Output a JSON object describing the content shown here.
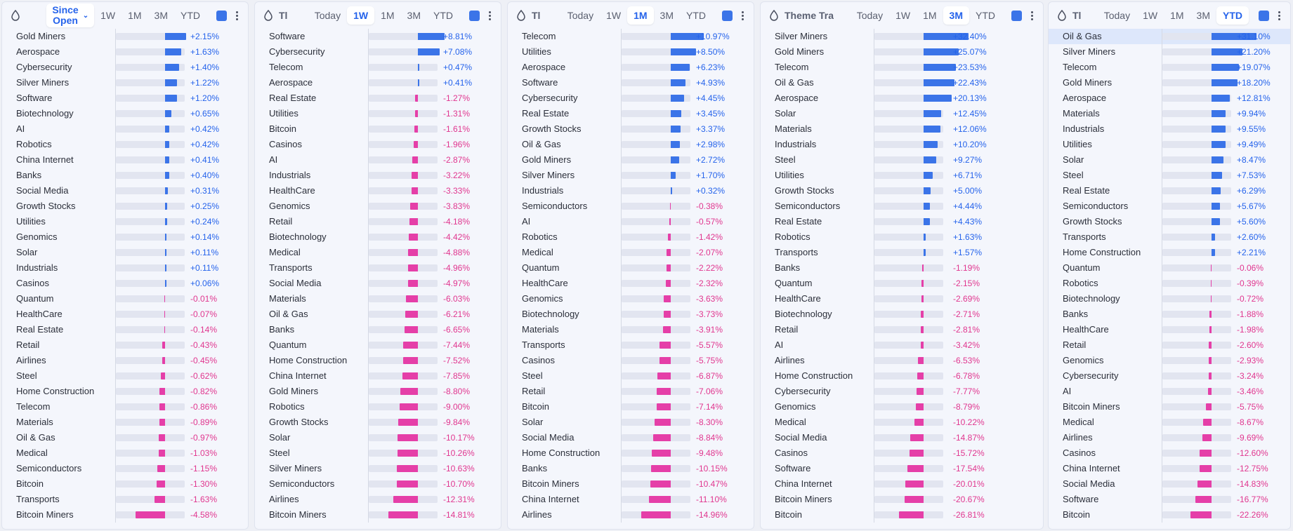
{
  "colors": {
    "positive": "#3b74e8",
    "negative": "#e53fa8",
    "positive_text": "#2563eb",
    "negative_text": "#e0368f"
  },
  "panels": [
    {
      "title": "",
      "tabs": [
        "Since Open",
        "1W",
        "1M",
        "3M",
        "YTD"
      ],
      "active_tab": 0,
      "highlight_row": -1,
      "rows": [
        {
          "name": "Gold Miners",
          "value": 2.15,
          "label": "+2.15%"
        },
        {
          "name": "Aerospace",
          "value": 1.63,
          "label": "+1.63%"
        },
        {
          "name": "Cybersecurity",
          "value": 1.4,
          "label": "+1.40%"
        },
        {
          "name": "Silver Miners",
          "value": 1.22,
          "label": "+1.22%"
        },
        {
          "name": "Software",
          "value": 1.2,
          "label": "+1.20%"
        },
        {
          "name": "Biotechnology",
          "value": 0.65,
          "label": "+0.65%"
        },
        {
          "name": "AI",
          "value": 0.42,
          "label": "+0.42%"
        },
        {
          "name": "Robotics",
          "value": 0.42,
          "label": "+0.42%"
        },
        {
          "name": "China Internet",
          "value": 0.41,
          "label": "+0.41%"
        },
        {
          "name": "Banks",
          "value": 0.4,
          "label": "+0.40%"
        },
        {
          "name": "Social Media",
          "value": 0.31,
          "label": "+0.31%"
        },
        {
          "name": "Growth Stocks",
          "value": 0.25,
          "label": "+0.25%"
        },
        {
          "name": "Utilities",
          "value": 0.24,
          "label": "+0.24%"
        },
        {
          "name": "Genomics",
          "value": 0.14,
          "label": "+0.14%"
        },
        {
          "name": "Solar",
          "value": 0.11,
          "label": "+0.11%"
        },
        {
          "name": "Industrials",
          "value": 0.11,
          "label": "+0.11%"
        },
        {
          "name": "Casinos",
          "value": 0.06,
          "label": "+0.06%"
        },
        {
          "name": "Quantum",
          "value": -0.01,
          "label": "-0.01%"
        },
        {
          "name": "HealthCare",
          "value": -0.07,
          "label": "-0.07%"
        },
        {
          "name": "Real Estate",
          "value": -0.14,
          "label": "-0.14%"
        },
        {
          "name": "Retail",
          "value": -0.43,
          "label": "-0.43%"
        },
        {
          "name": "Airlines",
          "value": -0.45,
          "label": "-0.45%"
        },
        {
          "name": "Steel",
          "value": -0.62,
          "label": "-0.62%"
        },
        {
          "name": "Home Construction",
          "value": -0.82,
          "label": "-0.82%"
        },
        {
          "name": "Telecom",
          "value": -0.86,
          "label": "-0.86%"
        },
        {
          "name": "Materials",
          "value": -0.89,
          "label": "-0.89%"
        },
        {
          "name": "Oil & Gas",
          "value": -0.97,
          "label": "-0.97%"
        },
        {
          "name": "Medical",
          "value": -1.03,
          "label": "-1.03%"
        },
        {
          "name": "Semiconductors",
          "value": -1.15,
          "label": "-1.15%"
        },
        {
          "name": "Bitcoin",
          "value": -1.3,
          "label": "-1.30%"
        },
        {
          "name": "Transports",
          "value": -1.63,
          "label": "-1.63%"
        },
        {
          "name": "Bitcoin Miners",
          "value": -4.58,
          "label": "-4.58%"
        }
      ]
    },
    {
      "title": "Tl",
      "tabs": [
        "Today",
        "1W",
        "1M",
        "3M",
        "YTD"
      ],
      "active_tab": 1,
      "highlight_row": -1,
      "rows": [
        {
          "name": "Software",
          "value": 8.81,
          "label": "+8.81%"
        },
        {
          "name": "Cybersecurity",
          "value": 7.08,
          "label": "+7.08%"
        },
        {
          "name": "Telecom",
          "value": 0.47,
          "label": "+0.47%"
        },
        {
          "name": "Aerospace",
          "value": 0.41,
          "label": "+0.41%"
        },
        {
          "name": "Real Estate",
          "value": -1.27,
          "label": "-1.27%"
        },
        {
          "name": "Utilities",
          "value": -1.31,
          "label": "-1.31%"
        },
        {
          "name": "Bitcoin",
          "value": -1.61,
          "label": "-1.61%"
        },
        {
          "name": "Casinos",
          "value": -1.96,
          "label": "-1.96%"
        },
        {
          "name": "AI",
          "value": -2.87,
          "label": "-2.87%"
        },
        {
          "name": "Industrials",
          "value": -3.22,
          "label": "-3.22%"
        },
        {
          "name": "HealthCare",
          "value": -3.33,
          "label": "-3.33%"
        },
        {
          "name": "Genomics",
          "value": -3.83,
          "label": "-3.83%"
        },
        {
          "name": "Retail",
          "value": -4.18,
          "label": "-4.18%"
        },
        {
          "name": "Biotechnology",
          "value": -4.42,
          "label": "-4.42%"
        },
        {
          "name": "Medical",
          "value": -4.88,
          "label": "-4.88%"
        },
        {
          "name": "Transports",
          "value": -4.96,
          "label": "-4.96%"
        },
        {
          "name": "Social Media",
          "value": -4.97,
          "label": "-4.97%"
        },
        {
          "name": "Materials",
          "value": -6.03,
          "label": "-6.03%"
        },
        {
          "name": "Oil & Gas",
          "value": -6.21,
          "label": "-6.21%"
        },
        {
          "name": "Banks",
          "value": -6.65,
          "label": "-6.65%"
        },
        {
          "name": "Quantum",
          "value": -7.44,
          "label": "-7.44%"
        },
        {
          "name": "Home Construction",
          "value": -7.52,
          "label": "-7.52%"
        },
        {
          "name": "China Internet",
          "value": -7.85,
          "label": "-7.85%"
        },
        {
          "name": "Gold Miners",
          "value": -8.8,
          "label": "-8.80%"
        },
        {
          "name": "Robotics",
          "value": -9.0,
          "label": "-9.00%"
        },
        {
          "name": "Growth Stocks",
          "value": -9.84,
          "label": "-9.84%"
        },
        {
          "name": "Solar",
          "value": -10.17,
          "label": "-10.17%"
        },
        {
          "name": "Steel",
          "value": -10.26,
          "label": "-10.26%"
        },
        {
          "name": "Silver Miners",
          "value": -10.63,
          "label": "-10.63%"
        },
        {
          "name": "Semiconductors",
          "value": -10.7,
          "label": "-10.70%"
        },
        {
          "name": "Airlines",
          "value": -12.31,
          "label": "-12.31%"
        },
        {
          "name": "Bitcoin Miners",
          "value": -14.81,
          "label": "-14.81%"
        }
      ]
    },
    {
      "title": "Tl",
      "tabs": [
        "Today",
        "1W",
        "1M",
        "3M",
        "YTD"
      ],
      "active_tab": 2,
      "highlight_row": -1,
      "rows": [
        {
          "name": "Telecom",
          "value": 10.97,
          "label": "+10.97%"
        },
        {
          "name": "Utilities",
          "value": 8.5,
          "label": "+8.50%"
        },
        {
          "name": "Aerospace",
          "value": 6.23,
          "label": "+6.23%"
        },
        {
          "name": "Software",
          "value": 4.93,
          "label": "+4.93%"
        },
        {
          "name": "Cybersecurity",
          "value": 4.45,
          "label": "+4.45%"
        },
        {
          "name": "Real Estate",
          "value": 3.45,
          "label": "+3.45%"
        },
        {
          "name": "Growth Stocks",
          "value": 3.37,
          "label": "+3.37%"
        },
        {
          "name": "Oil & Gas",
          "value": 2.98,
          "label": "+2.98%"
        },
        {
          "name": "Gold Miners",
          "value": 2.72,
          "label": "+2.72%"
        },
        {
          "name": "Silver Miners",
          "value": 1.7,
          "label": "+1.70%"
        },
        {
          "name": "Industrials",
          "value": 0.32,
          "label": "+0.32%"
        },
        {
          "name": "Semiconductors",
          "value": -0.38,
          "label": "-0.38%"
        },
        {
          "name": "AI",
          "value": -0.57,
          "label": "-0.57%"
        },
        {
          "name": "Robotics",
          "value": -1.42,
          "label": "-1.42%"
        },
        {
          "name": "Medical",
          "value": -2.07,
          "label": "-2.07%"
        },
        {
          "name": "Quantum",
          "value": -2.22,
          "label": "-2.22%"
        },
        {
          "name": "HealthCare",
          "value": -2.32,
          "label": "-2.32%"
        },
        {
          "name": "Genomics",
          "value": -3.63,
          "label": "-3.63%"
        },
        {
          "name": "Biotechnology",
          "value": -3.73,
          "label": "-3.73%"
        },
        {
          "name": "Materials",
          "value": -3.91,
          "label": "-3.91%"
        },
        {
          "name": "Transports",
          "value": -5.57,
          "label": "-5.57%"
        },
        {
          "name": "Casinos",
          "value": -5.75,
          "label": "-5.75%"
        },
        {
          "name": "Steel",
          "value": -6.87,
          "label": "-6.87%"
        },
        {
          "name": "Retail",
          "value": -7.06,
          "label": "-7.06%"
        },
        {
          "name": "Bitcoin",
          "value": -7.14,
          "label": "-7.14%"
        },
        {
          "name": "Solar",
          "value": -8.3,
          "label": "-8.30%"
        },
        {
          "name": "Social Media",
          "value": -8.84,
          "label": "-8.84%"
        },
        {
          "name": "Home Construction",
          "value": -9.48,
          "label": "-9.48%"
        },
        {
          "name": "Banks",
          "value": -10.15,
          "label": "-10.15%"
        },
        {
          "name": "Bitcoin Miners",
          "value": -10.47,
          "label": "-10.47%"
        },
        {
          "name": "China Internet",
          "value": -11.1,
          "label": "-11.10%"
        },
        {
          "name": "Airlines",
          "value": -14.96,
          "label": "-14.96%"
        }
      ]
    },
    {
      "title": "Theme Tra",
      "tabs": [
        "Today",
        "1W",
        "1M",
        "3M",
        "YTD"
      ],
      "active_tab": 3,
      "highlight_row": -1,
      "rows": [
        {
          "name": "Silver Miners",
          "value": 32.4,
          "label": "+32.40%"
        },
        {
          "name": "Gold Miners",
          "value": 25.07,
          "label": "+25.07%"
        },
        {
          "name": "Telecom",
          "value": 23.53,
          "label": "+23.53%"
        },
        {
          "name": "Oil & Gas",
          "value": 22.43,
          "label": "+22.43%"
        },
        {
          "name": "Aerospace",
          "value": 20.13,
          "label": "+20.13%"
        },
        {
          "name": "Solar",
          "value": 12.45,
          "label": "+12.45%"
        },
        {
          "name": "Materials",
          "value": 12.06,
          "label": "+12.06%"
        },
        {
          "name": "Industrials",
          "value": 10.2,
          "label": "+10.20%"
        },
        {
          "name": "Steel",
          "value": 9.27,
          "label": "+9.27%"
        },
        {
          "name": "Utilities",
          "value": 6.71,
          "label": "+6.71%"
        },
        {
          "name": "Growth Stocks",
          "value": 5.0,
          "label": "+5.00%"
        },
        {
          "name": "Semiconductors",
          "value": 4.44,
          "label": "+4.44%"
        },
        {
          "name": "Real Estate",
          "value": 4.43,
          "label": "+4.43%"
        },
        {
          "name": "Robotics",
          "value": 1.63,
          "label": "+1.63%"
        },
        {
          "name": "Transports",
          "value": 1.57,
          "label": "+1.57%"
        },
        {
          "name": "Banks",
          "value": -1.19,
          "label": "-1.19%"
        },
        {
          "name": "Quantum",
          "value": -2.15,
          "label": "-2.15%"
        },
        {
          "name": "HealthCare",
          "value": -2.69,
          "label": "-2.69%"
        },
        {
          "name": "Biotechnology",
          "value": -2.71,
          "label": "-2.71%"
        },
        {
          "name": "Retail",
          "value": -2.81,
          "label": "-2.81%"
        },
        {
          "name": "AI",
          "value": -3.42,
          "label": "-3.42%"
        },
        {
          "name": "Airlines",
          "value": -6.53,
          "label": "-6.53%"
        },
        {
          "name": "Home Construction",
          "value": -6.78,
          "label": "-6.78%"
        },
        {
          "name": "Cybersecurity",
          "value": -7.77,
          "label": "-7.77%"
        },
        {
          "name": "Genomics",
          "value": -8.79,
          "label": "-8.79%"
        },
        {
          "name": "Medical",
          "value": -10.22,
          "label": "-10.22%"
        },
        {
          "name": "Social Media",
          "value": -14.87,
          "label": "-14.87%"
        },
        {
          "name": "Casinos",
          "value": -15.72,
          "label": "-15.72%"
        },
        {
          "name": "Software",
          "value": -17.54,
          "label": "-17.54%"
        },
        {
          "name": "China Internet",
          "value": -20.01,
          "label": "-20.01%"
        },
        {
          "name": "Bitcoin Miners",
          "value": -20.67,
          "label": "-20.67%"
        },
        {
          "name": "Bitcoin",
          "value": -26.81,
          "label": "-26.81%"
        }
      ]
    },
    {
      "title": "Tl",
      "tabs": [
        "Today",
        "1W",
        "1M",
        "3M",
        "YTD"
      ],
      "active_tab": 4,
      "highlight_row": 0,
      "rows": [
        {
          "name": "Oil & Gas",
          "value": 31.1,
          "label": "+31.10%"
        },
        {
          "name": "Silver Miners",
          "value": 21.2,
          "label": "+21.20%"
        },
        {
          "name": "Telecom",
          "value": 19.07,
          "label": "+19.07%"
        },
        {
          "name": "Gold Miners",
          "value": 18.2,
          "label": "+18.20%"
        },
        {
          "name": "Aerospace",
          "value": 12.81,
          "label": "+12.81%"
        },
        {
          "name": "Materials",
          "value": 9.94,
          "label": "+9.94%"
        },
        {
          "name": "Industrials",
          "value": 9.55,
          "label": "+9.55%"
        },
        {
          "name": "Utilities",
          "value": 9.49,
          "label": "+9.49%"
        },
        {
          "name": "Solar",
          "value": 8.47,
          "label": "+8.47%"
        },
        {
          "name": "Steel",
          "value": 7.53,
          "label": "+7.53%"
        },
        {
          "name": "Real Estate",
          "value": 6.29,
          "label": "+6.29%"
        },
        {
          "name": "Semiconductors",
          "value": 5.67,
          "label": "+5.67%"
        },
        {
          "name": "Growth Stocks",
          "value": 5.6,
          "label": "+5.60%"
        },
        {
          "name": "Transports",
          "value": 2.6,
          "label": "+2.60%"
        },
        {
          "name": "Home Construction",
          "value": 2.21,
          "label": "+2.21%"
        },
        {
          "name": "Quantum",
          "value": -0.06,
          "label": "-0.06%"
        },
        {
          "name": "Robotics",
          "value": -0.39,
          "label": "-0.39%"
        },
        {
          "name": "Biotechnology",
          "value": -0.72,
          "label": "-0.72%"
        },
        {
          "name": "Banks",
          "value": -1.88,
          "label": "-1.88%"
        },
        {
          "name": "HealthCare",
          "value": -1.98,
          "label": "-1.98%"
        },
        {
          "name": "Retail",
          "value": -2.6,
          "label": "-2.60%"
        },
        {
          "name": "Genomics",
          "value": -2.93,
          "label": "-2.93%"
        },
        {
          "name": "Cybersecurity",
          "value": -3.24,
          "label": "-3.24%"
        },
        {
          "name": "AI",
          "value": -3.46,
          "label": "-3.46%"
        },
        {
          "name": "Bitcoin Miners",
          "value": -5.75,
          "label": "-5.75%"
        },
        {
          "name": "Medical",
          "value": -8.67,
          "label": "-8.67%"
        },
        {
          "name": "Airlines",
          "value": -9.69,
          "label": "-9.69%"
        },
        {
          "name": "Casinos",
          "value": -12.6,
          "label": "-12.60%"
        },
        {
          "name": "China Internet",
          "value": -12.75,
          "label": "-12.75%"
        },
        {
          "name": "Social Media",
          "value": -14.83,
          "label": "-14.83%"
        },
        {
          "name": "Software",
          "value": -16.77,
          "label": "-16.77%"
        },
        {
          "name": "Bitcoin",
          "value": -22.26,
          "label": "-22.26%"
        }
      ]
    }
  ]
}
